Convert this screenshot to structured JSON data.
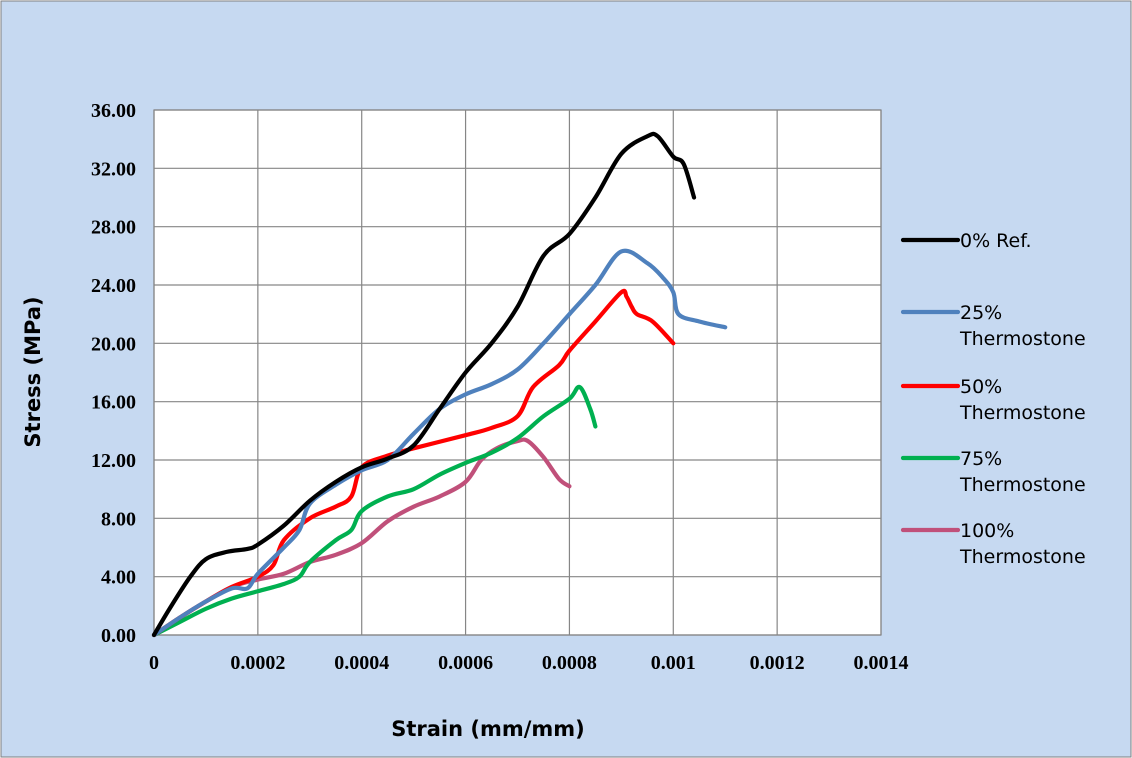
{
  "chart_data": {
    "type": "line",
    "xlabel": "Strain (mm/mm)",
    "ylabel": "Stress (MPa)",
    "xlim": [
      0,
      0.0014
    ],
    "ylim": [
      0,
      36
    ],
    "x_ticks": [
      "0",
      "0.0002",
      "0.0004",
      "0.0006",
      "0.0008",
      "0.001",
      "0.0012",
      "0.0014"
    ],
    "x_tick_values": [
      0,
      0.0002,
      0.0004,
      0.0006,
      0.0008,
      0.001,
      0.0012,
      0.0014
    ],
    "y_ticks": [
      "0.00",
      "4.00",
      "8.00",
      "12.00",
      "16.00",
      "20.00",
      "24.00",
      "28.00",
      "32.00",
      "36.00"
    ],
    "y_tick_values": [
      0,
      4,
      8,
      12,
      16,
      20,
      24,
      28,
      32,
      36
    ],
    "grid": true,
    "legend_position": "right",
    "series": [
      {
        "name": "0% Ref.",
        "color": "#000000",
        "points": [
          [
            0,
            0
          ],
          [
            3e-05,
            1.8
          ],
          [
            7e-05,
            4.0
          ],
          [
            0.0001,
            5.2
          ],
          [
            0.00014,
            5.7
          ],
          [
            0.00018,
            5.9
          ],
          [
            0.0002,
            6.2
          ],
          [
            0.00025,
            7.5
          ],
          [
            0.0003,
            9.2
          ],
          [
            0.00035,
            10.5
          ],
          [
            0.0004,
            11.5
          ],
          [
            0.00045,
            12.1
          ],
          [
            0.0005,
            13.0
          ],
          [
            0.00055,
            15.5
          ],
          [
            0.0006,
            18.0
          ],
          [
            0.00065,
            20.0
          ],
          [
            0.0007,
            22.5
          ],
          [
            0.00075,
            26.0
          ],
          [
            0.0008,
            27.5
          ],
          [
            0.00085,
            30.0
          ],
          [
            0.0009,
            33.0
          ],
          [
            0.00095,
            34.2
          ],
          [
            0.00097,
            34.2
          ],
          [
            0.001,
            32.8
          ],
          [
            0.00102,
            32.3
          ],
          [
            0.00104,
            30.0
          ]
        ]
      },
      {
        "name": "25% Thermostone",
        "color": "#4F81BD",
        "points": [
          [
            0,
            0
          ],
          [
            5e-05,
            1.2
          ],
          [
            0.0001,
            2.3
          ],
          [
            0.00015,
            3.2
          ],
          [
            0.00018,
            3.2
          ],
          [
            0.0002,
            4.2
          ],
          [
            0.00025,
            6.0
          ],
          [
            0.00028,
            7.2
          ],
          [
            0.0003,
            9.0
          ],
          [
            0.00035,
            10.3
          ],
          [
            0.0004,
            11.3
          ],
          [
            0.00045,
            12.0
          ],
          [
            0.0005,
            13.8
          ],
          [
            0.00055,
            15.5
          ],
          [
            0.0006,
            16.5
          ],
          [
            0.00065,
            17.2
          ],
          [
            0.0007,
            18.2
          ],
          [
            0.00075,
            20.0
          ],
          [
            0.0008,
            22.0
          ],
          [
            0.00085,
            24.0
          ],
          [
            0.0009,
            26.3
          ],
          [
            0.00095,
            25.5
          ],
          [
            0.00098,
            24.5
          ],
          [
            0.001,
            23.5
          ],
          [
            0.00101,
            22.0
          ],
          [
            0.00105,
            21.5
          ],
          [
            0.0011,
            21.1
          ]
        ]
      },
      {
        "name": "50% Thermostone",
        "color": "#FF0000",
        "points": [
          [
            0,
            0
          ],
          [
            5e-05,
            1.2
          ],
          [
            0.0001,
            2.3
          ],
          [
            0.00015,
            3.3
          ],
          [
            0.0002,
            4.0
          ],
          [
            0.00023,
            4.8
          ],
          [
            0.00025,
            6.5
          ],
          [
            0.0003,
            8.0
          ],
          [
            0.00035,
            8.8
          ],
          [
            0.00038,
            9.5
          ],
          [
            0.0004,
            11.5
          ],
          [
            0.00045,
            12.3
          ],
          [
            0.0005,
            12.8
          ],
          [
            0.0006,
            13.7
          ],
          [
            0.00065,
            14.2
          ],
          [
            0.0007,
            15.0
          ],
          [
            0.00073,
            17.0
          ],
          [
            0.00078,
            18.5
          ],
          [
            0.0008,
            19.5
          ],
          [
            0.00085,
            21.5
          ],
          [
            0.0009,
            23.5
          ],
          [
            0.00091,
            23.2
          ],
          [
            0.00092,
            22.5
          ],
          [
            0.00093,
            22.0
          ],
          [
            0.00096,
            21.5
          ],
          [
            0.001,
            20.0
          ]
        ]
      },
      {
        "name": "75% Thermostone",
        "color": "#00B050",
        "points": [
          [
            0,
            0
          ],
          [
            5e-05,
            0.9
          ],
          [
            0.0001,
            1.8
          ],
          [
            0.00015,
            2.5
          ],
          [
            0.0002,
            3.0
          ],
          [
            0.00025,
            3.5
          ],
          [
            0.00028,
            4.0
          ],
          [
            0.0003,
            5.0
          ],
          [
            0.00035,
            6.5
          ],
          [
            0.00038,
            7.2
          ],
          [
            0.0004,
            8.5
          ],
          [
            0.00045,
            9.5
          ],
          [
            0.0005,
            10.0
          ],
          [
            0.00055,
            11.0
          ],
          [
            0.0006,
            11.8
          ],
          [
            0.00065,
            12.5
          ],
          [
            0.0007,
            13.5
          ],
          [
            0.00075,
            15.0
          ],
          [
            0.0008,
            16.2
          ],
          [
            0.00082,
            17.0
          ],
          [
            0.00084,
            15.5
          ],
          [
            0.00085,
            14.3
          ]
        ]
      },
      {
        "name": "100% Thermostone",
        "color": "#C0507A",
        "points": [
          [
            0,
            0
          ],
          [
            5e-05,
            1.2
          ],
          [
            0.0001,
            2.3
          ],
          [
            0.00015,
            3.3
          ],
          [
            0.0002,
            3.8
          ],
          [
            0.00025,
            4.2
          ],
          [
            0.0003,
            5.0
          ],
          [
            0.00035,
            5.5
          ],
          [
            0.0004,
            6.3
          ],
          [
            0.00045,
            7.8
          ],
          [
            0.0005,
            8.8
          ],
          [
            0.00055,
            9.5
          ],
          [
            0.0006,
            10.5
          ],
          [
            0.00063,
            12.0
          ],
          [
            0.00066,
            12.8
          ],
          [
            0.0007,
            13.3
          ],
          [
            0.00072,
            13.3
          ],
          [
            0.00075,
            12.2
          ],
          [
            0.00078,
            10.7
          ],
          [
            0.0008,
            10.2
          ]
        ]
      }
    ]
  }
}
